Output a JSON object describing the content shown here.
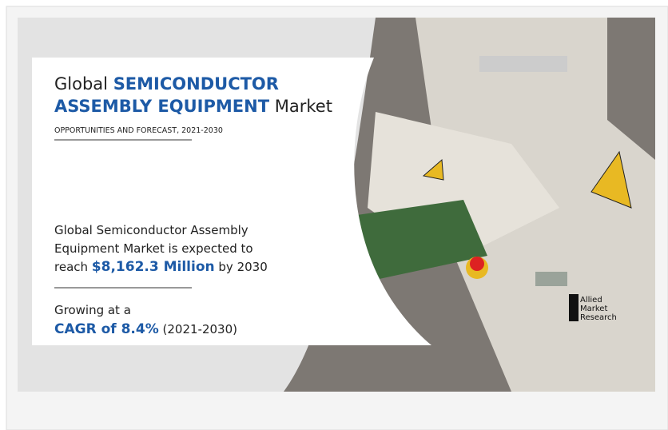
{
  "header": {
    "title_prefix": "Global",
    "title_highlight_1": "SEMICONDUCTOR",
    "title_highlight_2": "ASSEMBLY EQUIPMENT",
    "title_suffix": "Market",
    "subtitle": "OPPORTUNITIES AND FORECAST, 2021-2030"
  },
  "forecast": {
    "text_lines": [
      "Global Semiconductor Assembly",
      "Equipment Market is expected to"
    ],
    "reach_prefix": "reach",
    "value": "$8,162.3 Million",
    "reach_suffix": "by 2030"
  },
  "growth": {
    "prefix": "Growing at a",
    "cagr": "CAGR of 8.4%",
    "period": "(2021-2030)"
  },
  "logo": [
    "Allied",
    "Market",
    "Research"
  ]
}
